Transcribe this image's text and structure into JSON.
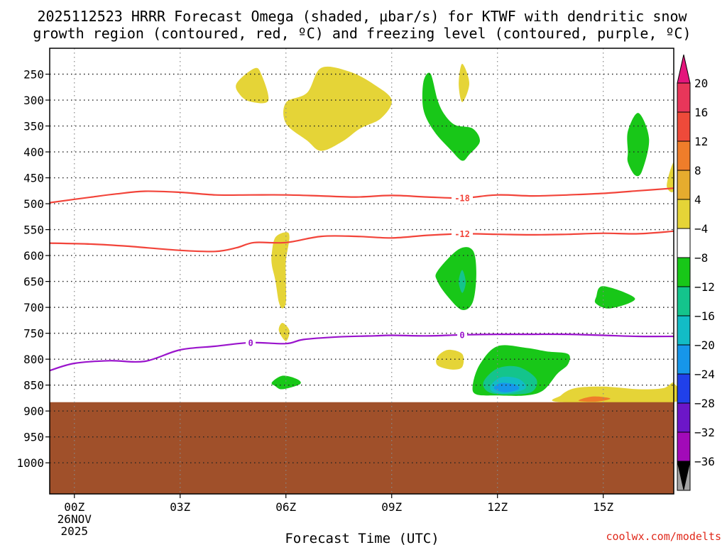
{
  "chart_data": {
    "type": "heatmap",
    "title_line1": "2025112523 HRRR Forecast Omega (shaded, μbar/s) for KTWF with dendritic snow",
    "title_line2": "growth region (contoured, red, ºC) and freezing level (contoured, purple, ºC)",
    "xlabel": "Forecast Time (UTC)",
    "credit": "coolwx.com/modelts",
    "xlim": [
      -0.7,
      17
    ],
    "ylim": [
      200,
      1060
    ],
    "x_ticks": [
      {
        "value": 0,
        "label": "00Z",
        "sub1": "26NOV",
        "sub2": "2025"
      },
      {
        "value": 3,
        "label": "03Z"
      },
      {
        "value": 6,
        "label": "06Z"
      },
      {
        "value": 9,
        "label": "09Z"
      },
      {
        "value": 12,
        "label": "12Z"
      },
      {
        "value": 15,
        "label": "15Z"
      }
    ],
    "y_ticks": [
      {
        "value": 250,
        "label": "250"
      },
      {
        "value": 300,
        "label": "300"
      },
      {
        "value": 350,
        "label": "350"
      },
      {
        "value": 400,
        "label": "400"
      },
      {
        "value": 450,
        "label": "450"
      },
      {
        "value": 500,
        "label": "500"
      },
      {
        "value": 550,
        "label": "550"
      },
      {
        "value": 600,
        "label": "600"
      },
      {
        "value": 650,
        "label": "650"
      },
      {
        "value": 700,
        "label": "700"
      },
      {
        "value": 750,
        "label": "750"
      },
      {
        "value": 800,
        "label": "800"
      },
      {
        "value": 850,
        "label": "850"
      },
      {
        "value": 900,
        "label": "900"
      },
      {
        "value": 950,
        "label": "950"
      },
      {
        "value": 1000,
        "label": "1000"
      }
    ],
    "colorbar": {
      "levels": [
        {
          "label": "20",
          "value": 20
        },
        {
          "label": "16",
          "value": 16
        },
        {
          "label": "12",
          "value": 12
        },
        {
          "label": "8",
          "value": 8
        },
        {
          "label": "4",
          "value": 4
        },
        {
          "label": "−4",
          "value": -4
        },
        {
          "label": "−8",
          "value": -8
        },
        {
          "label": "−12",
          "value": -12
        },
        {
          "label": "−16",
          "value": -16
        },
        {
          "label": "−20",
          "value": -20
        },
        {
          "label": "−24",
          "value": -24
        },
        {
          "label": "−28",
          "value": -28
        },
        {
          "label": "−32",
          "value": -32
        },
        {
          "label": "−36",
          "value": -36
        }
      ],
      "colors": [
        "#e8365a",
        "#ee4a3a",
        "#ef7d2a",
        "#e6ac2e",
        "#e5d437",
        "#ffffff",
        "#18c718",
        "#14c48c",
        "#12bcc6",
        "#1696ea",
        "#2040ea",
        "#6c16c8",
        "#a20ab8",
        "#a4a4a4"
      ],
      "top_arrow_color": "#e4167c",
      "bottom_arrow_color": "#000000"
    },
    "terrain": {
      "top_pressure": 883,
      "color": "#a0502a"
    },
    "omega_regions": [
      {
        "name": "upper-yellow-left",
        "color": "#e5d437",
        "pts": [
          [
            4.6,
            268
          ],
          [
            5.1,
            239
          ],
          [
            5.3,
            250
          ],
          [
            5.5,
            301
          ],
          [
            5.0,
            303
          ],
          [
            4.7,
            290
          ]
        ]
      },
      {
        "name": "upper-yellow-large",
        "color": "#e5d437",
        "pts": [
          [
            6.0,
            305
          ],
          [
            6.6,
            286
          ],
          [
            7.0,
            238
          ],
          [
            7.8,
            245
          ],
          [
            8.5,
            270
          ],
          [
            9.0,
            300
          ],
          [
            8.7,
            335
          ],
          [
            8.1,
            355
          ],
          [
            7.6,
            380
          ],
          [
            7.0,
            398
          ],
          [
            6.6,
            378
          ],
          [
            6.0,
            345
          ]
        ]
      },
      {
        "name": "upper-yellow-thin",
        "color": "#e5d437",
        "pts": [
          [
            10.9,
            268
          ],
          [
            11.0,
            230
          ],
          [
            11.2,
            268
          ],
          [
            11.0,
            304
          ]
        ]
      },
      {
        "name": "upper-green",
        "color": "#18c718",
        "pts": [
          [
            9.9,
            265
          ],
          [
            10.1,
            249
          ],
          [
            10.3,
            300
          ],
          [
            10.5,
            328
          ],
          [
            10.8,
            348
          ],
          [
            11.3,
            355
          ],
          [
            11.5,
            380
          ],
          [
            11.2,
            405
          ],
          [
            11.0,
            417
          ],
          [
            10.7,
            398
          ],
          [
            10.2,
            360
          ],
          [
            9.9,
            318
          ]
        ]
      },
      {
        "name": "right-green",
        "color": "#18c718",
        "pts": [
          [
            15.7,
            360
          ],
          [
            16.0,
            325
          ],
          [
            16.3,
            375
          ],
          [
            16.1,
            437
          ],
          [
            15.9,
            445
          ],
          [
            15.7,
            420
          ],
          [
            15.7,
            400
          ]
        ]
      },
      {
        "name": "right-edge-yellow",
        "color": "#e5d437",
        "pts": [
          [
            16.8,
            465
          ],
          [
            17.0,
            420
          ],
          [
            17.0,
            475
          ]
        ]
      },
      {
        "name": "mid-yellow-column",
        "color": "#e5d437",
        "pts": [
          [
            5.6,
            595
          ],
          [
            5.7,
            565
          ],
          [
            6.0,
            555
          ],
          [
            6.1,
            565
          ],
          [
            6.0,
            610
          ],
          [
            6.0,
            648
          ],
          [
            6.0,
            690
          ],
          [
            5.9,
            702
          ],
          [
            5.8,
            690
          ],
          [
            5.7,
            648
          ],
          [
            5.6,
            618
          ]
        ]
      },
      {
        "name": "mid-yellow-drop",
        "color": "#e5d437",
        "pts": [
          [
            5.8,
            745
          ],
          [
            5.9,
            730
          ],
          [
            6.1,
            745
          ],
          [
            6.0,
            765
          ]
        ]
      },
      {
        "name": "mid-green-blob",
        "color": "#18c718",
        "pts": [
          [
            10.3,
            630
          ],
          [
            10.9,
            588
          ],
          [
            11.3,
            590
          ],
          [
            11.4,
            635
          ],
          [
            11.3,
            690
          ],
          [
            11.0,
            705
          ],
          [
            10.6,
            680
          ],
          [
            10.3,
            650
          ]
        ]
      },
      {
        "name": "mid-teal-blob",
        "color": "#14c48c",
        "pts": [
          [
            10.9,
            650
          ],
          [
            11.0,
            628
          ],
          [
            11.1,
            652
          ],
          [
            11.0,
            672
          ]
        ]
      },
      {
        "name": "right-green-blob",
        "color": "#18c718",
        "pts": [
          [
            14.8,
            680
          ],
          [
            15.0,
            659
          ],
          [
            15.9,
            683
          ],
          [
            15.2,
            702
          ],
          [
            14.8,
            693
          ]
        ]
      },
      {
        "name": "low-yellow-small",
        "color": "#e5d437",
        "pts": [
          [
            10.3,
            795
          ],
          [
            10.6,
            782
          ],
          [
            11.0,
            790
          ],
          [
            11.0,
            815
          ],
          [
            10.7,
            820
          ],
          [
            10.3,
            812
          ]
        ]
      },
      {
        "name": "low-green-left",
        "color": "#18c718",
        "pts": [
          [
            5.6,
            845
          ],
          [
            5.9,
            832
          ],
          [
            6.3,
            838
          ],
          [
            6.4,
            848
          ],
          [
            5.9,
            858
          ],
          [
            5.7,
            852
          ]
        ]
      },
      {
        "name": "low-green-large",
        "color": "#18c718",
        "pts": [
          [
            11.3,
            850
          ],
          [
            11.5,
            810
          ],
          [
            12.0,
            775
          ],
          [
            12.8,
            778
          ],
          [
            13.4,
            785
          ],
          [
            14.0,
            790
          ],
          [
            14.0,
            810
          ],
          [
            13.7,
            828
          ],
          [
            13.3,
            860
          ],
          [
            12.8,
            870
          ],
          [
            12.0,
            870
          ],
          [
            11.4,
            868
          ]
        ]
      },
      {
        "name": "low-teal",
        "color": "#14c48c",
        "pts": [
          [
            11.6,
            845
          ],
          [
            12.0,
            818
          ],
          [
            12.6,
            815
          ],
          [
            13.1,
            838
          ],
          [
            13.0,
            862
          ],
          [
            12.5,
            868
          ],
          [
            11.8,
            865
          ]
        ]
      },
      {
        "name": "low-cyan",
        "color": "#12bcc6",
        "pts": [
          [
            11.8,
            852
          ],
          [
            12.1,
            835
          ],
          [
            12.6,
            838
          ],
          [
            12.8,
            856
          ],
          [
            12.3,
            866
          ],
          [
            11.9,
            864
          ]
        ]
      },
      {
        "name": "low-blue",
        "color": "#1696ea",
        "pts": [
          [
            11.9,
            856
          ],
          [
            12.1,
            846
          ],
          [
            12.5,
            849
          ],
          [
            12.6,
            858
          ],
          [
            12.2,
            864
          ]
        ]
      },
      {
        "name": "surface-yellow",
        "color": "#e5d437",
        "pts": [
          [
            13.8,
            870
          ],
          [
            14.2,
            856
          ],
          [
            15.0,
            853
          ],
          [
            16.0,
            858
          ],
          [
            16.7,
            856
          ],
          [
            17.0,
            846
          ],
          [
            17.0,
            883
          ],
          [
            13.8,
            883
          ]
        ]
      },
      {
        "name": "surface-orange",
        "color": "#ef7d2a",
        "pts": [
          [
            14.3,
            880
          ],
          [
            14.7,
            872
          ],
          [
            15.2,
            876
          ],
          [
            14.8,
            882
          ]
        ]
      }
    ],
    "dgz_contours": [
      {
        "label": "-18",
        "color": "#f2443a",
        "label_x": 11.0,
        "points": [
          [
            -0.7,
            498
          ],
          [
            0.5,
            487
          ],
          [
            1.2,
            481
          ],
          [
            2.0,
            476
          ],
          [
            3.0,
            478
          ],
          [
            4.0,
            483
          ],
          [
            5.0,
            483
          ],
          [
            6.0,
            483
          ],
          [
            7.0,
            485
          ],
          [
            8.0,
            487
          ],
          [
            9.0,
            484
          ],
          [
            10.0,
            487
          ],
          [
            11.0,
            489
          ],
          [
            12.0,
            483
          ],
          [
            13.0,
            485
          ],
          [
            14.0,
            483
          ],
          [
            15.0,
            480
          ],
          [
            16.0,
            475
          ],
          [
            17.0,
            470
          ]
        ]
      },
      {
        "label": "-12",
        "color": "#f2443a",
        "label_x": 11.0,
        "points": [
          [
            -0.7,
            576
          ],
          [
            0.5,
            578
          ],
          [
            1.5,
            582
          ],
          [
            3.0,
            590
          ],
          [
            4.0,
            592
          ],
          [
            4.6,
            585
          ],
          [
            5.1,
            575
          ],
          [
            6.0,
            575
          ],
          [
            7.0,
            563
          ],
          [
            8.0,
            563
          ],
          [
            9.0,
            566
          ],
          [
            10.0,
            561
          ],
          [
            11.0,
            558
          ],
          [
            12.0,
            559
          ],
          [
            13.0,
            560
          ],
          [
            14.0,
            559
          ],
          [
            15.0,
            557
          ],
          [
            16.0,
            558
          ],
          [
            17.0,
            553
          ]
        ]
      }
    ],
    "freezing_contour": {
      "label": "0",
      "color": "#9a14cc",
      "label_xs": [
        5.0,
        11.0
      ],
      "points": [
        [
          -0.7,
          822
        ],
        [
          0.0,
          808
        ],
        [
          1.0,
          803
        ],
        [
          2.0,
          804
        ],
        [
          3.0,
          782
        ],
        [
          4.0,
          775
        ],
        [
          5.0,
          768
        ],
        [
          6.0,
          770
        ],
        [
          6.5,
          762
        ],
        [
          7.5,
          757
        ],
        [
          8.5,
          755
        ],
        [
          9.0,
          754
        ],
        [
          10.0,
          755
        ],
        [
          11.0,
          753
        ],
        [
          12.0,
          752
        ],
        [
          13.0,
          752
        ],
        [
          14.0,
          752
        ],
        [
          15.0,
          754
        ],
        [
          16.0,
          756
        ],
        [
          17.0,
          756
        ]
      ]
    }
  }
}
